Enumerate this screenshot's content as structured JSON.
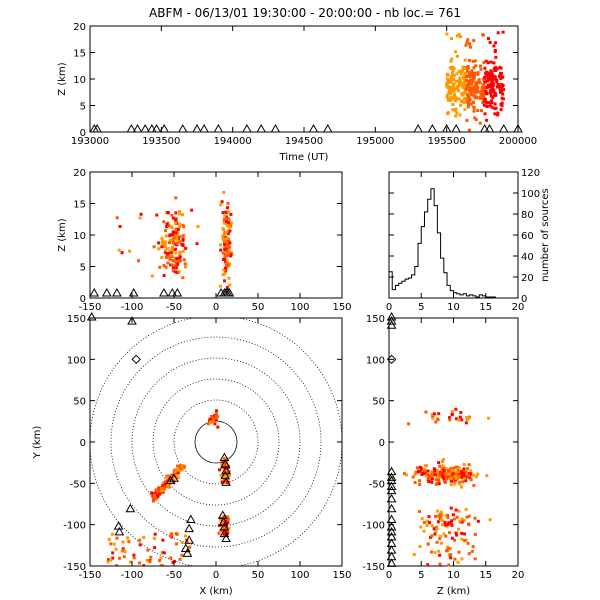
{
  "title": "ABFM - 06/13/01 19:30:00 - 20:00:00 - nb loc.= 761",
  "colors": {
    "early": "#ff9900",
    "mid": "#ff5a00",
    "late": "#ff0000",
    "frame": "#000000"
  },
  "chart_data": [
    {
      "panel": "time-height",
      "type": "scatter",
      "xlabel": "Time (UT)",
      "ylabel": "Z (km)",
      "xlim": [
        193000,
        200000
      ],
      "ylim": [
        0,
        20
      ],
      "xticks": [
        "193000",
        "193500",
        "194000",
        "194500",
        "195000",
        "195500",
        "200000"
      ],
      "yticks": [
        "0",
        "5",
        "10",
        "15",
        "20"
      ],
      "x_scale": "HHMMSS",
      "stations_time": [
        "193018",
        "193030",
        "193254",
        "193320",
        "193352",
        "193420",
        "193440",
        "193512",
        "193630",
        "193730",
        "193800",
        "193900",
        "194100",
        "194200",
        "194300",
        "194540",
        "194640",
        "195300",
        "195400",
        "195500",
        "195540",
        "195740",
        "195800",
        "195900",
        "200000"
      ],
      "points_sample": [
        [
          195500,
          8
        ],
        [
          195600,
          10
        ],
        [
          195700,
          9
        ],
        [
          195800,
          12
        ],
        [
          195900,
          8
        ]
      ]
    },
    {
      "panel": "x-z",
      "type": "scatter",
      "xlabel": "",
      "ylabel": "Z (km)",
      "xlim": [
        -150,
        150
      ],
      "ylim": [
        0,
        20
      ],
      "xticks": [
        "-150",
        "-100",
        "-50",
        "0",
        "50",
        "100",
        "150"
      ],
      "yticks": [
        "0",
        "5",
        "10",
        "15",
        "20"
      ],
      "stations_x": [
        -145,
        -130,
        -118,
        -98,
        -62,
        -52,
        -46,
        6,
        10,
        12,
        14,
        16
      ]
    },
    {
      "panel": "histogram",
      "type": "bar",
      "xlabel": "",
      "ylabel": "number of sources",
      "xlim": [
        0,
        20
      ],
      "ylim": [
        0,
        120
      ],
      "xticks": [
        "0",
        "5",
        "10",
        "15",
        "20"
      ],
      "yticks": [
        "0",
        "20",
        "40",
        "60",
        "80",
        "100",
        "120"
      ],
      "bin_width_km": 0.5,
      "bins_start": 0,
      "counts": [
        25,
        8,
        12,
        14,
        16,
        18,
        19,
        22,
        30,
        52,
        68,
        82,
        94,
        104,
        88,
        62,
        38,
        24,
        12,
        7,
        5,
        4,
        3,
        4,
        2,
        3,
        2,
        1,
        3,
        2,
        1,
        1,
        1,
        0,
        0,
        0,
        0,
        0,
        0,
        0
      ]
    },
    {
      "panel": "plan",
      "type": "scatter",
      "xlabel": "X (km)",
      "ylabel": "Y (km)",
      "xlim": [
        -150,
        150
      ],
      "ylim": [
        -150,
        150
      ],
      "xticks": [
        "-150",
        "-100",
        "-50",
        "0",
        "50",
        "100",
        "150"
      ],
      "yticks": [
        "-150",
        "-100",
        "-50",
        "0",
        "50",
        "100",
        "150"
      ],
      "range_rings_km": [
        25,
        50,
        75,
        100,
        125,
        150
      ],
      "stations_xy": [
        [
          -148,
          150
        ],
        [
          -102,
          -82
        ],
        [
          -116,
          -103
        ],
        [
          -115,
          -110
        ],
        [
          -30,
          -95
        ],
        [
          -32,
          -106
        ],
        [
          -32,
          -120
        ],
        [
          -36,
          -130
        ],
        [
          -34,
          -136
        ],
        [
          10,
          -20
        ],
        [
          11,
          -28
        ],
        [
          12,
          -36
        ],
        [
          11,
          -42
        ],
        [
          12,
          -50
        ],
        [
          8,
          -90
        ],
        [
          9,
          -98
        ],
        [
          10,
          -104
        ],
        [
          10,
          -112
        ],
        [
          12,
          -118
        ],
        [
          -50,
          -45
        ],
        [
          -54,
          -48
        ],
        [
          -100,
          145
        ]
      ],
      "diamond_xy": [
        [
          -95,
          100
        ]
      ]
    },
    {
      "panel": "z-y",
      "type": "scatter",
      "xlabel": "Z (km)",
      "ylabel": "",
      "xlim": [
        0,
        20
      ],
      "ylim": [
        -150,
        150
      ],
      "xticks": [
        "0",
        "5",
        "10",
        "15",
        "20"
      ],
      "yticks": [
        "-150",
        "-100",
        "-50",
        "0",
        "50",
        "100",
        "150"
      ],
      "stations_y": [
        150,
        145,
        140,
        -37,
        -44,
        -48,
        -55,
        -60,
        -70,
        -82,
        -95,
        -104,
        -110,
        -116,
        -124,
        -132,
        -140,
        -148
      ],
      "diamond_y": [
        100
      ]
    }
  ]
}
